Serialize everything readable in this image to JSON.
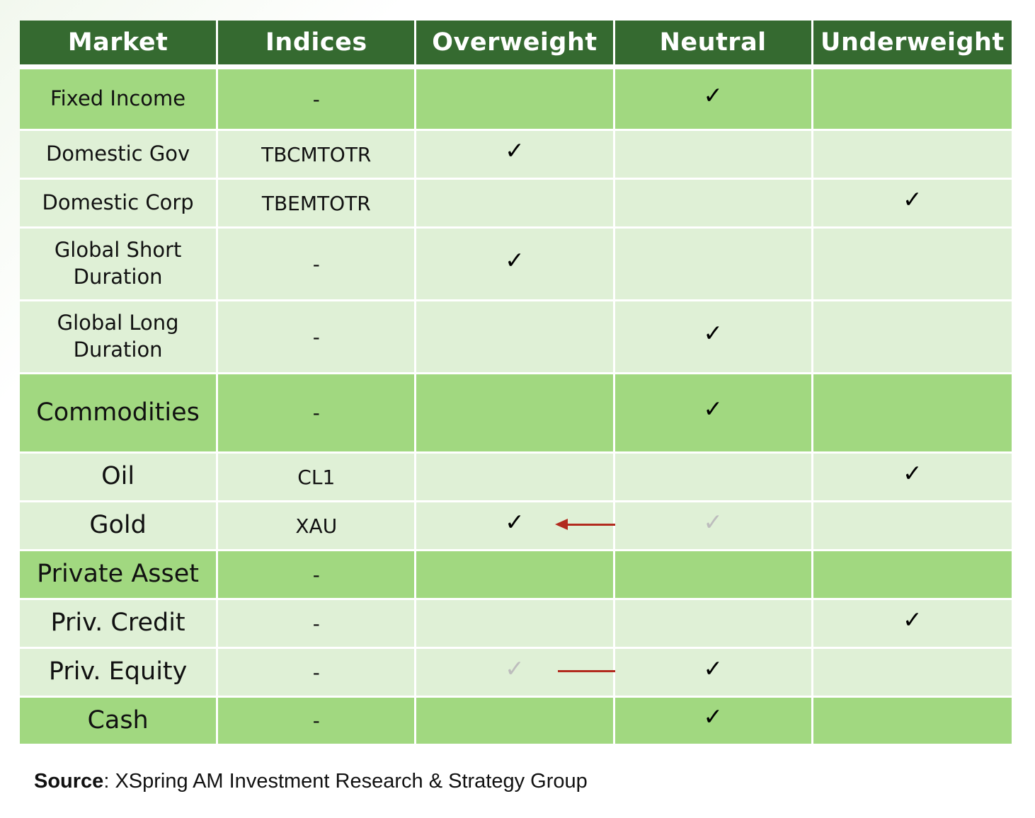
{
  "headers": [
    "Market",
    "Indices",
    "Overweight",
    "Neutral",
    "Underweight"
  ],
  "check_symbol": "✓",
  "colors": {
    "header_bg": "#356a30",
    "category_row_bg": "#a1d880",
    "sub_row_bg": "#dff0d6",
    "arrow": "#b22a1e",
    "faded_check": "#bdbdbd"
  },
  "rows": [
    {
      "market": "Fixed Income",
      "index": "-",
      "type": "category",
      "position": "Neutral"
    },
    {
      "market": "Domestic Gov",
      "index": "TBCMTOTR",
      "type": "sub",
      "position": "Overweight"
    },
    {
      "market": "Domestic Corp",
      "index": "TBEMTOTR",
      "type": "sub",
      "position": "Underweight"
    },
    {
      "market": "Global Short Duration",
      "index": "-",
      "type": "sub",
      "position": "Overweight"
    },
    {
      "market": "Global Long Duration",
      "index": "-",
      "type": "sub",
      "position": "Neutral"
    },
    {
      "market": "Commodities",
      "index": "-",
      "type": "category",
      "position": "Neutral"
    },
    {
      "market": "Oil",
      "index": "CL1",
      "type": "sub",
      "position": "Underweight"
    },
    {
      "market": "Gold",
      "index": "XAU",
      "type": "sub",
      "position": "Overweight",
      "previous_position": "Neutral"
    },
    {
      "market": "Private Asset",
      "index": "-",
      "type": "category",
      "position": ""
    },
    {
      "market": "Priv. Credit",
      "index": "-",
      "type": "sub",
      "position": "Underweight"
    },
    {
      "market": "Priv. Equity",
      "index": "-",
      "type": "sub",
      "position": "Neutral",
      "previous_position": "Overweight"
    },
    {
      "market": "Cash",
      "index": "-",
      "type": "category",
      "position": "Neutral"
    }
  ],
  "source": {
    "label": "Source",
    "text": ": XSpring AM Investment Research & Strategy Group"
  }
}
